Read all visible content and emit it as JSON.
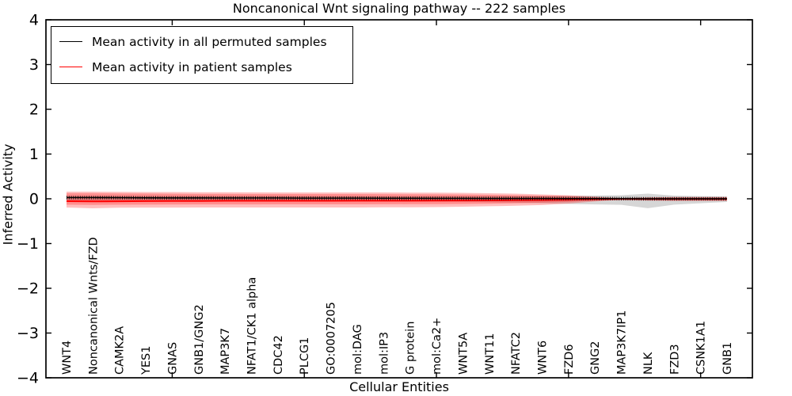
{
  "figure": {
    "title": "Noncanonical Wnt signaling pathway -- 222 samples",
    "xlabel": "Cellular Entities",
    "ylabel": "Inferred Activity"
  },
  "chart_data": {
    "type": "line",
    "title": "Noncanonical Wnt signaling pathway -- 222 samples",
    "xlabel": "Cellular Entities",
    "ylabel": "Inferred Activity",
    "ylim": [
      -4,
      4
    ],
    "yticks": [
      -4,
      -3,
      -2,
      -1,
      0,
      1,
      2,
      3,
      4
    ],
    "xtick_values": [
      5,
      10,
      15,
      20,
      25
    ],
    "grid": false,
    "legend_position": "upper left",
    "categories": [
      "WNT4",
      "Noncanonical Wnts/FZD",
      "CAMK2A",
      "YES1",
      "GNAS",
      "GNB1/GNG2",
      "MAP3K7",
      "NFAT1/CK1 alpha",
      "CDC42",
      "PLCG1",
      "GO:0007205",
      "mol:DAG",
      "mol:IP3",
      "G protein",
      "mol:Ca2+",
      "WNT5A",
      "WNT11",
      "NFATC2",
      "WNT6",
      "FZD6",
      "GNG2",
      "MAP3K7IP1",
      "NLK",
      "FZD3",
      "CSNK1A1",
      "GNB1"
    ],
    "series": [
      {
        "name": "Mean activity in all permuted samples",
        "color": "#000000",
        "marker": "tick",
        "values": [
          0.027,
          0.027,
          0.025,
          0.022,
          0.02,
          0.02,
          0.018,
          0.018,
          0.018,
          0.015,
          0.015,
          0.015,
          0.012,
          0.012,
          0.01,
          0.01,
          0.008,
          0.008,
          0.008,
          0.005,
          0.005,
          0.003,
          0.0,
          0.0,
          0.0,
          0.0
        ]
      },
      {
        "name": "Mean activity in patient samples",
        "color": "#ff0000",
        "marker": "none",
        "values": [
          -0.053,
          -0.058,
          -0.055,
          -0.05,
          -0.048,
          -0.048,
          -0.045,
          -0.045,
          -0.045,
          -0.044,
          -0.044,
          -0.042,
          -0.042,
          -0.042,
          -0.04,
          -0.038,
          -0.035,
          -0.032,
          -0.028,
          -0.022,
          -0.012,
          -0.005,
          -0.005,
          -0.005,
          -0.005,
          -0.005
        ]
      }
    ],
    "bands": [
      {
        "name": "permuted-samples-range",
        "color": "#999999",
        "opacity": 0.4,
        "upper": [
          0.06,
          0.06,
          0.058,
          0.058,
          0.057,
          0.057,
          0.057,
          0.057,
          0.057,
          0.057,
          0.057,
          0.057,
          0.057,
          0.057,
          0.057,
          0.057,
          0.058,
          0.06,
          0.063,
          0.067,
          0.072,
          0.08,
          0.115,
          0.07,
          0.06,
          0.05
        ],
        "lower": [
          -0.06,
          -0.062,
          -0.062,
          -0.062,
          -0.062,
          -0.062,
          -0.062,
          -0.062,
          -0.062,
          -0.062,
          -0.062,
          -0.062,
          -0.062,
          -0.062,
          -0.062,
          -0.066,
          -0.075,
          -0.086,
          -0.1,
          -0.115,
          -0.125,
          -0.135,
          -0.21,
          -0.13,
          -0.1,
          -0.07
        ]
      },
      {
        "name": "patient-samples-range-outer",
        "color": "#ff0000",
        "opacity": 0.25,
        "upper": [
          0.159,
          0.159,
          0.155,
          0.15,
          0.15,
          0.145,
          0.145,
          0.143,
          0.141,
          0.141,
          0.141,
          0.141,
          0.141,
          0.138,
          0.138,
          0.132,
          0.125,
          0.115,
          0.098,
          0.08,
          0.05,
          0.015,
          0.03,
          0.04,
          0.04,
          0.04
        ],
        "lower": [
          -0.195,
          -0.212,
          -0.2,
          -0.198,
          -0.198,
          -0.195,
          -0.195,
          -0.195,
          -0.195,
          -0.195,
          -0.195,
          -0.195,
          -0.19,
          -0.19,
          -0.185,
          -0.177,
          -0.167,
          -0.155,
          -0.14,
          -0.107,
          -0.06,
          -0.02,
          -0.038,
          -0.046,
          -0.046,
          -0.046
        ]
      },
      {
        "name": "patient-samples-range-inner",
        "color": "#ff0000",
        "opacity": 0.25,
        "upper": [
          0.124,
          0.124,
          0.12,
          0.118,
          0.113,
          0.108,
          0.108,
          0.106,
          0.106,
          0.106,
          0.106,
          0.106,
          0.104,
          0.102,
          0.1,
          0.095,
          0.088,
          0.08,
          0.068,
          0.055,
          0.03,
          0.008,
          0.022,
          0.028,
          0.028,
          0.028
        ],
        "lower": [
          -0.133,
          -0.137,
          -0.133,
          -0.131,
          -0.129,
          -0.127,
          -0.126,
          -0.126,
          -0.124,
          -0.124,
          -0.124,
          -0.124,
          -0.122,
          -0.12,
          -0.119,
          -0.115,
          -0.108,
          -0.099,
          -0.087,
          -0.069,
          -0.044,
          -0.016,
          -0.031,
          -0.037,
          -0.037,
          -0.037
        ]
      }
    ]
  }
}
